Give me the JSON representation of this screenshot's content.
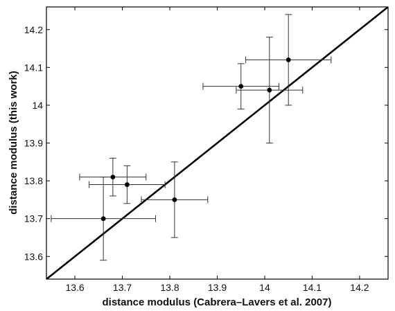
{
  "chart_data": {
    "type": "scatter",
    "title": "",
    "xlabel": "distance modulus (Cabrera–Lavers et al. 2007)",
    "ylabel": "distance modulus (this work)",
    "xlim": [
      13.54,
      14.26
    ],
    "ylim": [
      13.54,
      14.26
    ],
    "x_ticks": [
      13.6,
      13.7,
      13.8,
      13.9,
      14.0,
      14.1,
      14.2
    ],
    "x_tick_labels": [
      "13.6",
      "13.7",
      "13.8",
      "13.9",
      "14",
      "14.1",
      "14.2"
    ],
    "y_ticks": [
      13.6,
      13.7,
      13.8,
      13.9,
      14.0,
      14.1,
      14.2
    ],
    "y_tick_labels": [
      "13.6",
      "13.7",
      "13.8",
      "13.9",
      "14",
      "14.1",
      "14.2"
    ],
    "grid": false,
    "legend": "none",
    "reference_line": {
      "type": "y=x",
      "color": "#000000"
    },
    "points": [
      {
        "x": 13.66,
        "y": 13.7,
        "xerr": 0.11,
        "yerr": 0.11
      },
      {
        "x": 13.68,
        "y": 13.81,
        "xerr": 0.07,
        "yerr": 0.05
      },
      {
        "x": 13.71,
        "y": 13.79,
        "xerr": 0.08,
        "yerr": 0.05
      },
      {
        "x": 13.81,
        "y": 13.75,
        "xerr": 0.07,
        "yerr": 0.1
      },
      {
        "x": 13.95,
        "y": 14.05,
        "xerr": 0.08,
        "yerr": 0.06
      },
      {
        "x": 14.01,
        "y": 14.04,
        "xerr": 0.07,
        "yerr": 0.14
      },
      {
        "x": 14.05,
        "y": 14.12,
        "xerr": 0.09,
        "yerr": 0.12
      }
    ],
    "marker_color": "#000000"
  }
}
